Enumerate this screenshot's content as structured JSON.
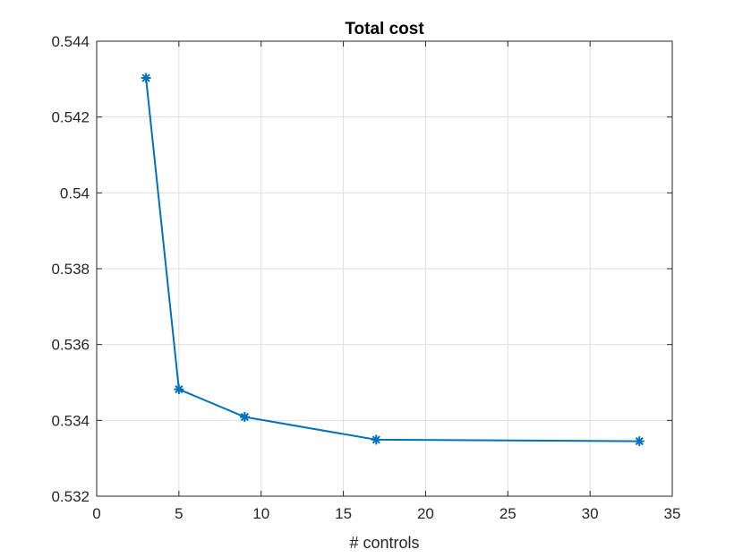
{
  "chart_data": {
    "type": "line",
    "title": "Total cost",
    "xlabel": "# controls",
    "ylabel": "",
    "xlim": [
      0,
      35
    ],
    "ylim": [
      0.532,
      0.544
    ],
    "x_ticks": [
      0,
      5,
      10,
      15,
      20,
      25,
      30,
      35
    ],
    "x_tick_labels": [
      "0",
      "5",
      "10",
      "15",
      "20",
      "25",
      "30",
      "35"
    ],
    "y_ticks": [
      0.532,
      0.534,
      0.536,
      0.538,
      0.54,
      0.542,
      0.544
    ],
    "y_tick_labels": [
      "0.532",
      "0.534",
      "0.536",
      "0.538",
      "0.54",
      "0.542",
      "0.544"
    ],
    "grid": true,
    "series": [
      {
        "color": "#0072bd",
        "marker": "asterisk",
        "x": [
          3,
          5,
          9,
          17,
          33
        ],
        "y": [
          0.54303,
          0.53482,
          0.53409,
          0.53349,
          0.53345
        ]
      }
    ]
  }
}
